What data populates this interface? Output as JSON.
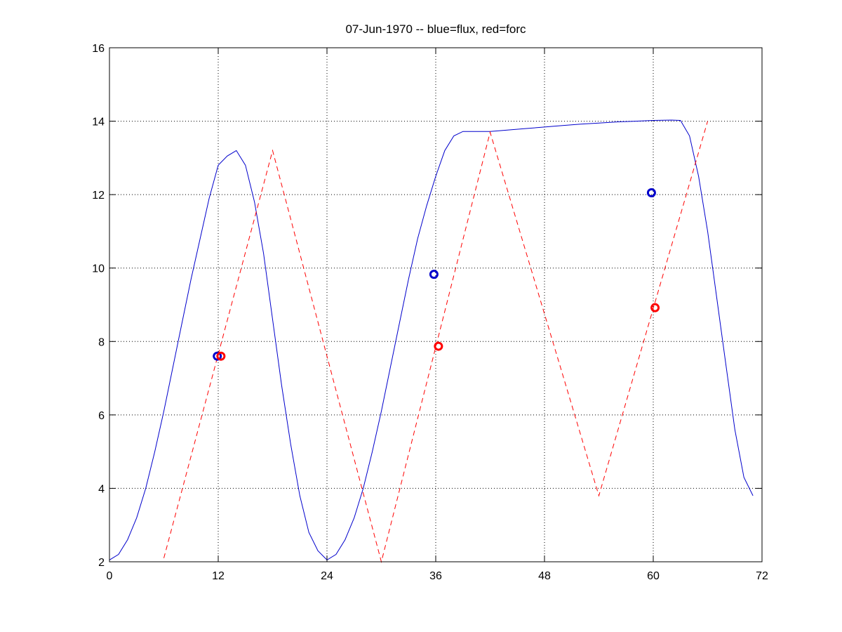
{
  "chart_data": {
    "type": "line",
    "title": "07-Jun-1970 -- blue=flux, red=forc",
    "xlabel": "",
    "ylabel": "",
    "xlim": [
      0,
      72
    ],
    "ylim": [
      2,
      16
    ],
    "x_ticks": [
      0,
      12,
      24,
      36,
      48,
      60,
      72
    ],
    "y_ticks": [
      2,
      4,
      6,
      8,
      10,
      12,
      14,
      16
    ],
    "grid": true,
    "series": [
      {
        "color": "#0000cc",
        "style": "solid",
        "points": [
          [
            0,
            2.05
          ],
          [
            1,
            2.2
          ],
          [
            2,
            2.6
          ],
          [
            3,
            3.2
          ],
          [
            4,
            4.0
          ],
          [
            5,
            5.0
          ],
          [
            6,
            6.1
          ],
          [
            7,
            7.3
          ],
          [
            8,
            8.5
          ],
          [
            9,
            9.7
          ],
          [
            10,
            10.8
          ],
          [
            11,
            11.9
          ],
          [
            12,
            12.8
          ],
          [
            13,
            13.05
          ],
          [
            14,
            13.2
          ],
          [
            15,
            12.8
          ],
          [
            16,
            11.8
          ],
          [
            17,
            10.4
          ],
          [
            18,
            8.6
          ],
          [
            19,
            6.8
          ],
          [
            20,
            5.2
          ],
          [
            21,
            3.8
          ],
          [
            22,
            2.8
          ],
          [
            23,
            2.3
          ],
          [
            24,
            2.05
          ],
          [
            25,
            2.2
          ],
          [
            26,
            2.6
          ],
          [
            27,
            3.2
          ],
          [
            28,
            4.0
          ],
          [
            29,
            5.0
          ],
          [
            30,
            6.1
          ],
          [
            31,
            7.3
          ],
          [
            32,
            8.5
          ],
          [
            33,
            9.7
          ],
          [
            34,
            10.8
          ],
          [
            35,
            11.7
          ],
          [
            36,
            12.5
          ],
          [
            37,
            13.2
          ],
          [
            38,
            13.6
          ],
          [
            39,
            13.72
          ],
          [
            40,
            13.72
          ],
          [
            42,
            13.72
          ],
          [
            44,
            13.76
          ],
          [
            46,
            13.8
          ],
          [
            48,
            13.84
          ],
          [
            50,
            13.88
          ],
          [
            52,
            13.92
          ],
          [
            54,
            13.95
          ],
          [
            56,
            13.98
          ],
          [
            58,
            14.0
          ],
          [
            60,
            14.02
          ],
          [
            62,
            14.03
          ],
          [
            63,
            14.02
          ],
          [
            64,
            13.6
          ],
          [
            65,
            12.5
          ],
          [
            66,
            11.0
          ],
          [
            67,
            9.2
          ],
          [
            68,
            7.4
          ],
          [
            69,
            5.6
          ],
          [
            70,
            4.3
          ],
          [
            71,
            3.8
          ]
        ]
      },
      {
        "color": "#ff0000",
        "style": "dashed",
        "points": [
          [
            6,
            2.1
          ],
          [
            18,
            13.2
          ],
          [
            30,
            2.0
          ],
          [
            42,
            13.7
          ],
          [
            54,
            3.8
          ],
          [
            66,
            14.0
          ]
        ]
      }
    ],
    "markers": [
      {
        "color": "#0000cc",
        "x": 11.9,
        "y": 7.6
      },
      {
        "color": "#ff0000",
        "x": 12.3,
        "y": 7.6
      },
      {
        "color": "#0000cc",
        "x": 35.8,
        "y": 9.83
      },
      {
        "color": "#ff0000",
        "x": 36.3,
        "y": 7.87
      },
      {
        "color": "#0000cc",
        "x": 59.8,
        "y": 12.05
      },
      {
        "color": "#ff0000",
        "x": 60.2,
        "y": 8.92
      }
    ]
  }
}
